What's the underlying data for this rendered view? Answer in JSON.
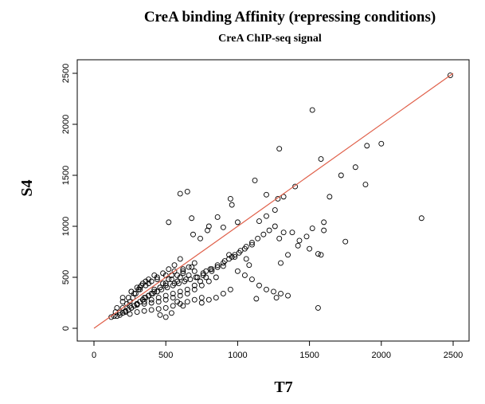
{
  "chart_data": {
    "type": "scatter",
    "title": "CreA binding Affinity (repressing conditions)",
    "subtitle": "CreA ChIP-seq signal",
    "xlabel": "T7",
    "ylabel": "S4",
    "xlim": [
      0,
      2500
    ],
    "ylim": [
      0,
      2500
    ],
    "xticks": [
      "0",
      "500",
      "1000",
      "1500",
      "2000",
      "2500"
    ],
    "yticks": [
      "0",
      "500",
      "1000",
      "1500",
      "2000",
      "2500"
    ],
    "grid": false,
    "legend": "none",
    "colors": {
      "points": "#000000",
      "fit_line": "#e0604a"
    },
    "fit_line": {
      "x": [
        0,
        2500
      ],
      "y": [
        0,
        2500
      ]
    },
    "series": [
      {
        "x": [
          2480,
          1520,
          1290,
          1900,
          2000,
          1580,
          1720,
          1820,
          1890,
          1640,
          2280,
          1750,
          1400,
          1120,
          1320,
          1600,
          1580,
          950,
          1280,
          1260,
          1200,
          960,
          860,
          1000,
          1560,
          1560,
          1270,
          1130,
          600,
          650,
          680,
          520,
          690,
          800,
          900,
          740,
          790,
          1200,
          1320,
          1290,
          1150,
          1380,
          1520,
          1480,
          1430,
          1500,
          1600,
          1420,
          1350,
          1300,
          1100,
          1050,
          1060,
          1080,
          980,
          940,
          900,
          860,
          820,
          780,
          760,
          720,
          700,
          660,
          640,
          620,
          600,
          580,
          560,
          540,
          520,
          500,
          480,
          460,
          440,
          420,
          400,
          380,
          360,
          340,
          320,
          300,
          280,
          260,
          240,
          220,
          200,
          180,
          160,
          140,
          120,
          700,
          740,
          780,
          820,
          860,
          900,
          940,
          980,
          1020,
          1060,
          1100,
          1140,
          1180,
          1220,
          1260,
          650,
          600,
          550,
          500,
          450,
          400,
          350,
          300,
          250,
          200,
          150,
          680,
          620,
          560,
          500,
          440,
          380,
          320,
          260,
          200,
          750,
          700,
          650,
          600,
          550,
          500,
          450,
          400,
          350,
          300,
          250,
          850,
          800,
          750,
          700,
          650,
          600,
          550,
          500,
          450,
          400,
          350,
          300,
          950,
          900,
          850,
          800,
          750,
          1000,
          1050,
          1100,
          1150,
          1200,
          1250,
          1300,
          1350,
          700,
          660,
          620,
          580,
          540,
          500,
          460,
          420,
          380,
          340,
          300,
          260,
          220,
          180,
          600,
          560,
          520,
          480,
          440,
          400,
          360,
          320,
          280,
          240,
          200,
          160,
          420,
          380,
          340,
          300,
          260,
          460,
          500,
          540,
          580,
          620,
          360,
          330,
          310,
          290,
          270,
          250,
          230,
          350,
          380,
          410,
          440,
          470,
          510,
          550,
          590,
          630,
          670,
          710,
          760,
          810,
          860,
          910,
          960,
          1010
        ],
        "y": [
          2480,
          2140,
          1760,
          1790,
          1810,
          1660,
          1500,
          1580,
          1410,
          1290,
          1080,
          850,
          1390,
          1450,
          1290,
          1040,
          720,
          1270,
          1270,
          1160,
          1310,
          1210,
          1090,
          1040,
          200,
          730,
          300,
          290,
          1320,
          1340,
          1080,
          1040,
          920,
          1000,
          990,
          880,
          960,
          1100,
          940,
          880,
          1050,
          940,
          980,
          900,
          860,
          780,
          960,
          810,
          720,
          640,
          820,
          780,
          680,
          620,
          700,
          720,
          610,
          600,
          580,
          560,
          520,
          500,
          560,
          520,
          480,
          540,
          500,
          460,
          440,
          520,
          480,
          420,
          440,
          400,
          360,
          380,
          340,
          320,
          300,
          280,
          260,
          240,
          220,
          200,
          180,
          160,
          150,
          130,
          120,
          120,
          110,
          420,
          460,
          500,
          560,
          600,
          640,
          680,
          720,
          760,
          800,
          840,
          880,
          920,
          960,
          1000,
          380,
          360,
          340,
          320,
          300,
          280,
          260,
          240,
          220,
          200,
          160,
          600,
          580,
          560,
          520,
          480,
          440,
          400,
          360,
          300,
          300,
          280,
          260,
          240,
          220,
          200,
          190,
          180,
          170,
          160,
          140,
          500,
          460,
          420,
          380,
          340,
          320,
          300,
          280,
          260,
          250,
          240,
          230,
          380,
          340,
          300,
          280,
          250,
          560,
          520,
          480,
          420,
          380,
          360,
          340,
          320,
          640,
          600,
          560,
          520,
          480,
          440,
          400,
          360,
          320,
          280,
          240,
          200,
          170,
          150,
          680,
          620,
          580,
          540,
          500,
          460,
          420,
          380,
          340,
          300,
          260,
          200,
          520,
          480,
          440,
          400,
          360,
          130,
          110,
          150,
          260,
          220,
          460,
          420,
          380,
          340,
          300,
          260,
          240,
          300,
          320,
          340,
          360,
          380,
          400,
          420,
          440,
          460,
          480,
          500,
          540,
          580,
          620,
          660,
          700,
          740
        ]
      }
    ]
  }
}
